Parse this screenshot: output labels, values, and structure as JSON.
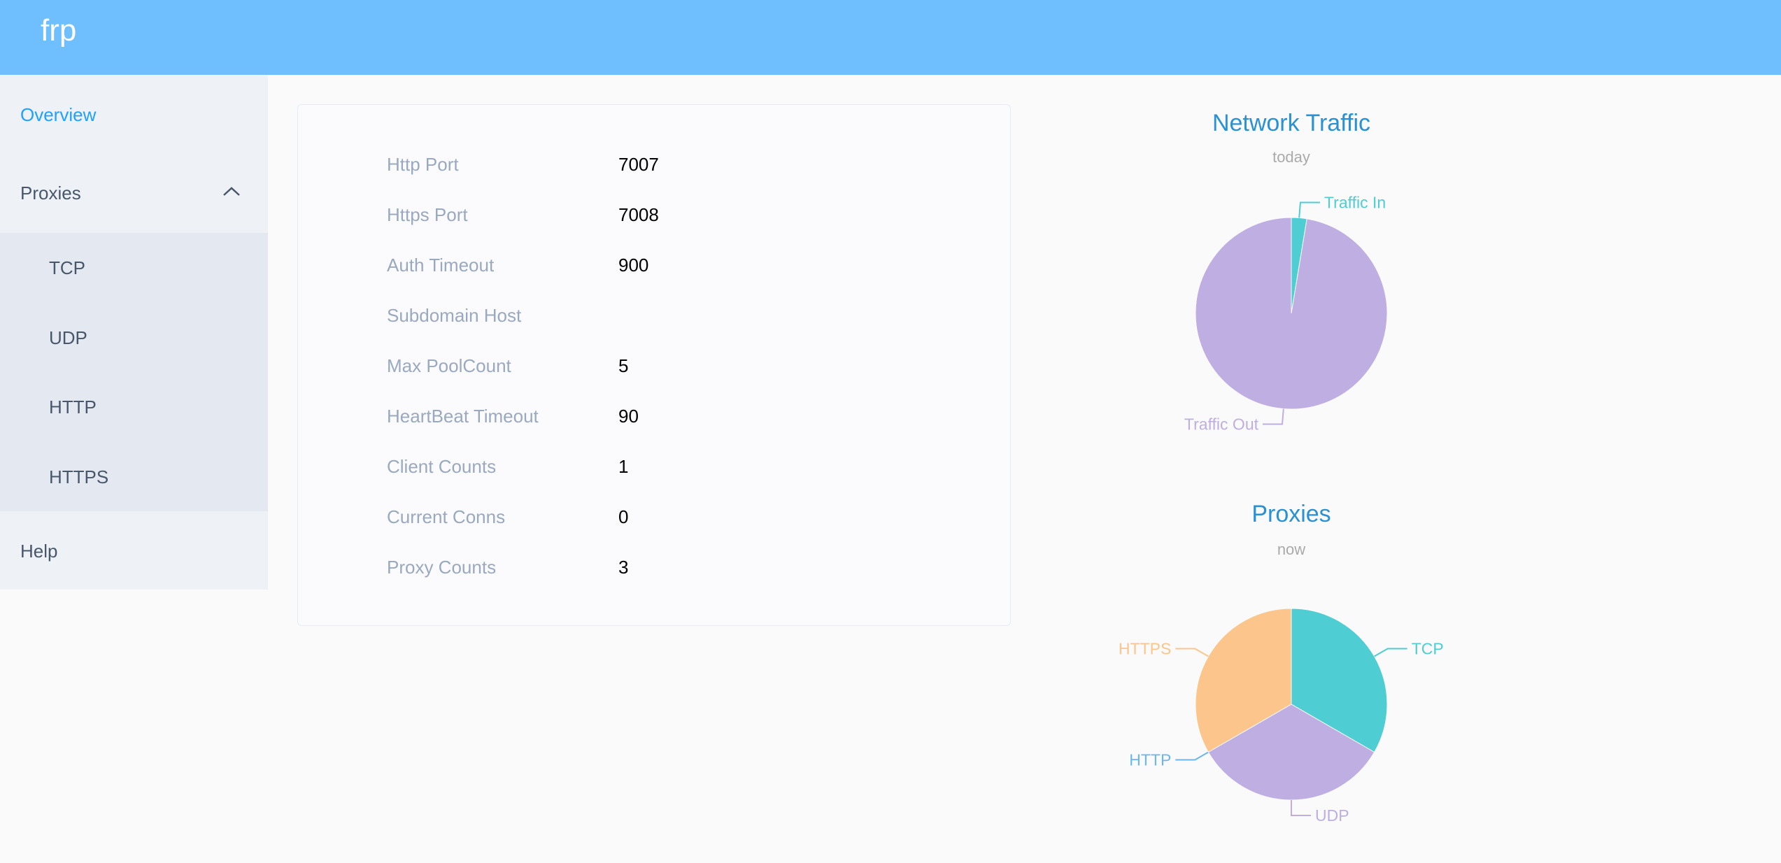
{
  "header": {
    "logo": "frp",
    "brand_color": "#6fbfff"
  },
  "sidebar": {
    "items": [
      {
        "label": "Overview",
        "active": true
      },
      {
        "label": "Proxies",
        "expanded": true,
        "icon": "chevron-up-icon"
      },
      {
        "label": "Help"
      }
    ],
    "proxy_subitems": [
      {
        "label": "TCP"
      },
      {
        "label": "UDP"
      },
      {
        "label": "HTTP"
      },
      {
        "label": "HTTPS"
      }
    ]
  },
  "server_info": [
    {
      "label": "Http Port",
      "value": "7007"
    },
    {
      "label": "Https Port",
      "value": "7008"
    },
    {
      "label": "Auth Timeout",
      "value": "900"
    },
    {
      "label": "Subdomain Host",
      "value": ""
    },
    {
      "label": "Max PoolCount",
      "value": "5"
    },
    {
      "label": "HeartBeat Timeout",
      "value": "90"
    },
    {
      "label": "Client Counts",
      "value": "1"
    },
    {
      "label": "Current Conns",
      "value": "0"
    },
    {
      "label": "Proxy Counts",
      "value": "3"
    }
  ],
  "chart_data": [
    {
      "type": "pie",
      "title": "Network Traffic",
      "subtitle": "today",
      "unit": "percent share (estimated)",
      "slices": [
        {
          "name": "Traffic In",
          "value": 2.6,
          "color": "#4ecdd2"
        },
        {
          "name": "Traffic Out",
          "value": 97.4,
          "color": "#bfaee2"
        }
      ]
    },
    {
      "type": "pie",
      "title": "Proxies",
      "subtitle": "now",
      "slices": [
        {
          "name": "TCP",
          "value": 1,
          "color": "#4ecdd2"
        },
        {
          "name": "UDP",
          "value": 1,
          "color": "#bfaee2"
        },
        {
          "name": "HTTP",
          "value": 0,
          "color": "#6ab7f0"
        },
        {
          "name": "HTTPS",
          "value": 1,
          "color": "#fbc58b"
        }
      ]
    }
  ]
}
